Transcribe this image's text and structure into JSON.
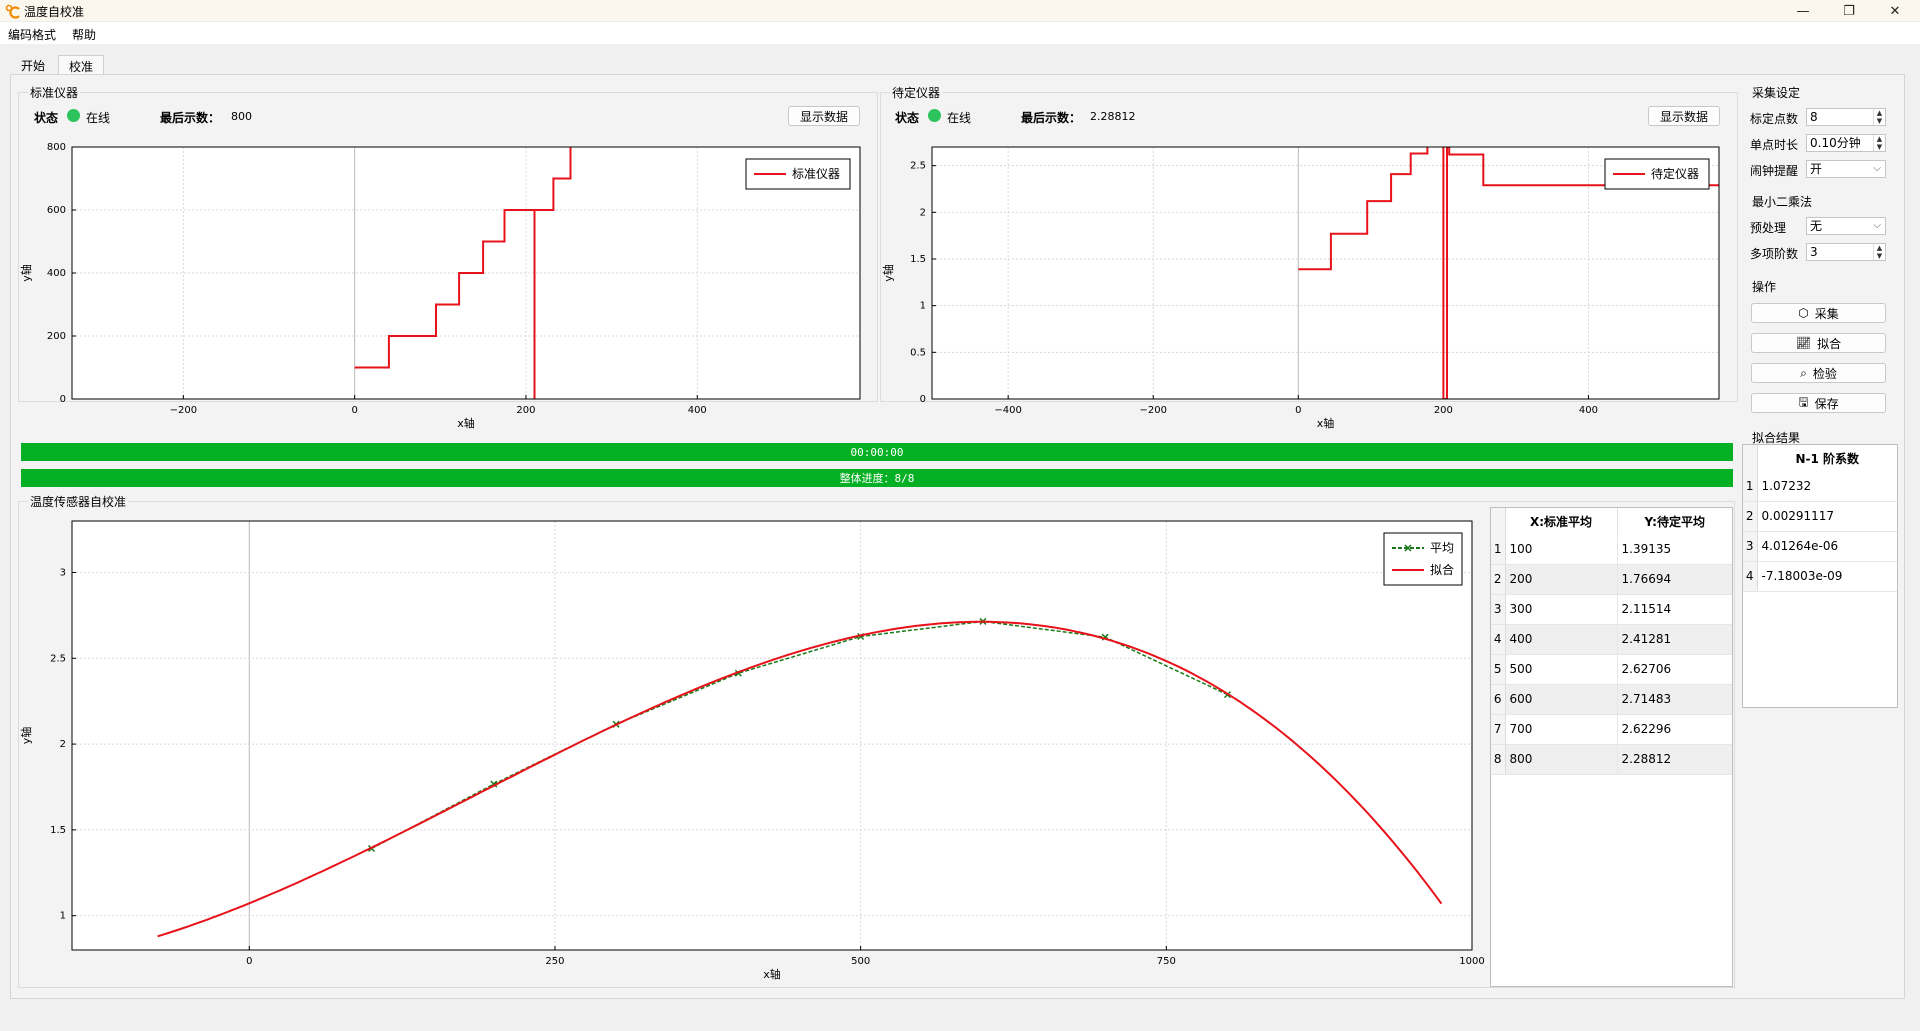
{
  "window": {
    "title": "温度自校准"
  },
  "menu": [
    "编码格式",
    "帮助"
  ],
  "tabs": [
    {
      "label": "开始"
    },
    {
      "label": "校准"
    }
  ],
  "standard": {
    "group_title": "标准仪器",
    "status_label": "状态",
    "status_value": "在线",
    "last_label": "最后示数：",
    "last_value": "800",
    "show_button": "显示数据"
  },
  "target": {
    "group_title": "待定仪器",
    "status_label": "状态",
    "status_value": "在线",
    "last_label": "最后示数：",
    "last_value": "2.28812",
    "show_button": "显示数据"
  },
  "progress": {
    "time_text": "00:00:00",
    "overall_text": "整体进度：8/8",
    "time_fraction": 1.0,
    "overall_fraction": 1.0
  },
  "calib_group_title": "温度传感器自校准",
  "settings": {
    "collect_title": "采集设定",
    "points_label": "标定点数",
    "points_value": "8",
    "duration_label": "单点时长",
    "duration_value": "0.10分钟",
    "remind_label": "闹钟提醒",
    "remind_value": "开",
    "lsq_title": "最小二乘法",
    "preprocess_label": "预处理",
    "preprocess_value": "无",
    "order_label": "多项阶数",
    "order_value": "3",
    "ops_title": "操作",
    "buttons": {
      "collect": "采集",
      "fit": "拟合",
      "check": "检验",
      "save": "保存"
    },
    "result_title": "拟合结果"
  },
  "avg_table": {
    "headers": [
      "X:标准平均",
      "Y:待定平均"
    ],
    "rows": [
      [
        "100",
        "1.39135"
      ],
      [
        "200",
        "1.76694"
      ],
      [
        "300",
        "2.11514"
      ],
      [
        "400",
        "2.41281"
      ],
      [
        "500",
        "2.62706"
      ],
      [
        "600",
        "2.71483"
      ],
      [
        "700",
        "2.62296"
      ],
      [
        "800",
        "2.28812"
      ]
    ]
  },
  "result_table": {
    "header": "N-1 阶系数",
    "rows": [
      "1.07232",
      "0.00291117",
      "4.01264e-06",
      "-7.18003e-09"
    ]
  },
  "chart_data": [
    {
      "type": "line",
      "name": "standard",
      "xlabel": "x轴",
      "ylabel": "y轴",
      "xlim": [
        -330,
        590
      ],
      "ylim": [
        0,
        800
      ],
      "xticks": [
        -200,
        0,
        200,
        400
      ],
      "yticks": [
        0,
        200,
        400,
        600,
        800
      ],
      "grid": true,
      "legend": "top-right",
      "series": [
        {
          "name": "标准仪器",
          "color": "#e8121a",
          "x": [
            0,
            40,
            40,
            95,
            95,
            122,
            122,
            150,
            150,
            175,
            175,
            210,
            210,
            210,
            211,
            211,
            232,
            232,
            252,
            252
          ],
          "y": [
            100,
            100,
            200,
            200,
            300,
            300,
            400,
            400,
            500,
            500,
            600,
            600,
            0,
            600,
            600,
            600,
            600,
            700,
            700,
            800
          ]
        }
      ]
    },
    {
      "type": "line",
      "name": "target",
      "xlabel": "x轴",
      "ylabel": "y轴",
      "xlim": [
        -505,
        580
      ],
      "ylim": [
        0,
        2.7
      ],
      "xticks": [
        -400,
        -200,
        0,
        200,
        400
      ],
      "yticks": [
        0,
        0.5,
        1,
        1.5,
        2,
        2.5
      ],
      "grid": true,
      "legend": "top-right",
      "series": [
        {
          "name": "待定仪器",
          "color": "#e8121a",
          "x": [
            0,
            45,
            45,
            95,
            95,
            128,
            128,
            155,
            155,
            178,
            178,
            200,
            200,
            205,
            205,
            208,
            208,
            255,
            255,
            580
          ],
          "y": [
            1.39,
            1.39,
            1.77,
            1.77,
            2.12,
            2.12,
            2.41,
            2.41,
            2.63,
            2.63,
            2.71,
            2.71,
            0,
            0,
            2.7,
            2.7,
            2.62,
            2.62,
            2.29,
            2.29
          ]
        }
      ]
    },
    {
      "type": "line",
      "name": "calibration",
      "xlabel": "x轴",
      "ylabel": "y轴",
      "xlim": [
        -145,
        1000
      ],
      "ylim": [
        0.8,
        3.3
      ],
      "xticks": [
        0,
        250,
        500,
        750,
        1000
      ],
      "yticks": [
        1,
        1.5,
        2,
        2.5,
        3
      ],
      "grid": true,
      "legend": "top-right",
      "series": [
        {
          "name": "平均",
          "color": "#1a7a1a",
          "style": "dashed-x",
          "x": [
            100,
            200,
            300,
            400,
            500,
            600,
            700,
            800
          ],
          "y": [
            1.39135,
            1.76694,
            2.11514,
            2.41281,
            2.62706,
            2.71483,
            2.62296,
            2.28812
          ]
        },
        {
          "name": "拟合",
          "color": "#e8121a",
          "style": "solid",
          "coefficients": [
            1.07232,
            0.00291117,
            4.01264e-06,
            -7.18003e-09
          ],
          "xrange": [
            -75,
            975
          ]
        }
      ]
    }
  ],
  "colors": {
    "progress": "#06b025",
    "status_online": "#2cc25d",
    "fit": "#e8121a",
    "avg": "#1a7a1a"
  },
  "icons": {
    "collect": "cube-icon",
    "fit": "chart-icon",
    "check": "search-check-icon",
    "save": "save-icon"
  }
}
